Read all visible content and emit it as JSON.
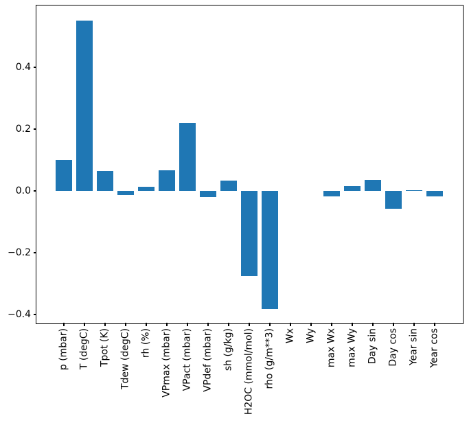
{
  "chart_data": {
    "type": "bar",
    "categories": [
      "p (mbar)",
      "T (degC)",
      "Tpot (K)",
      "Tdew (degC)",
      "rh (%)",
      "VPmax (mbar)",
      "VPact (mbar)",
      "VPdef (mbar)",
      "sh (g/kg)",
      "H2OC (mmol/mol)",
      "rho (g/m**3)",
      "Wx",
      "Wy",
      "max Wx",
      "max Wy",
      "Day sin",
      "Day cos",
      "Year sin",
      "Year cos"
    ],
    "values": [
      0.1,
      0.552,
      0.064,
      -0.013,
      0.013,
      0.066,
      0.221,
      -0.019,
      0.033,
      -0.275,
      -0.382,
      0.0,
      0.0,
      -0.018,
      0.016,
      0.035,
      -0.058,
      0.003,
      -0.017
    ],
    "yticks": [
      0.4,
      0.2,
      0.0,
      -0.2,
      -0.4
    ],
    "ytick_labels": [
      "0.4",
      "0.2",
      "0.0",
      "−0.2",
      "−0.4"
    ],
    "ylim": [
      -0.4267,
      0.6
    ],
    "bar_color": "#1f77b4",
    "background_color": "#ffffff",
    "spine_color": "#000000",
    "grid": false,
    "legend_position": "none",
    "xtick_rotation": 90
  }
}
